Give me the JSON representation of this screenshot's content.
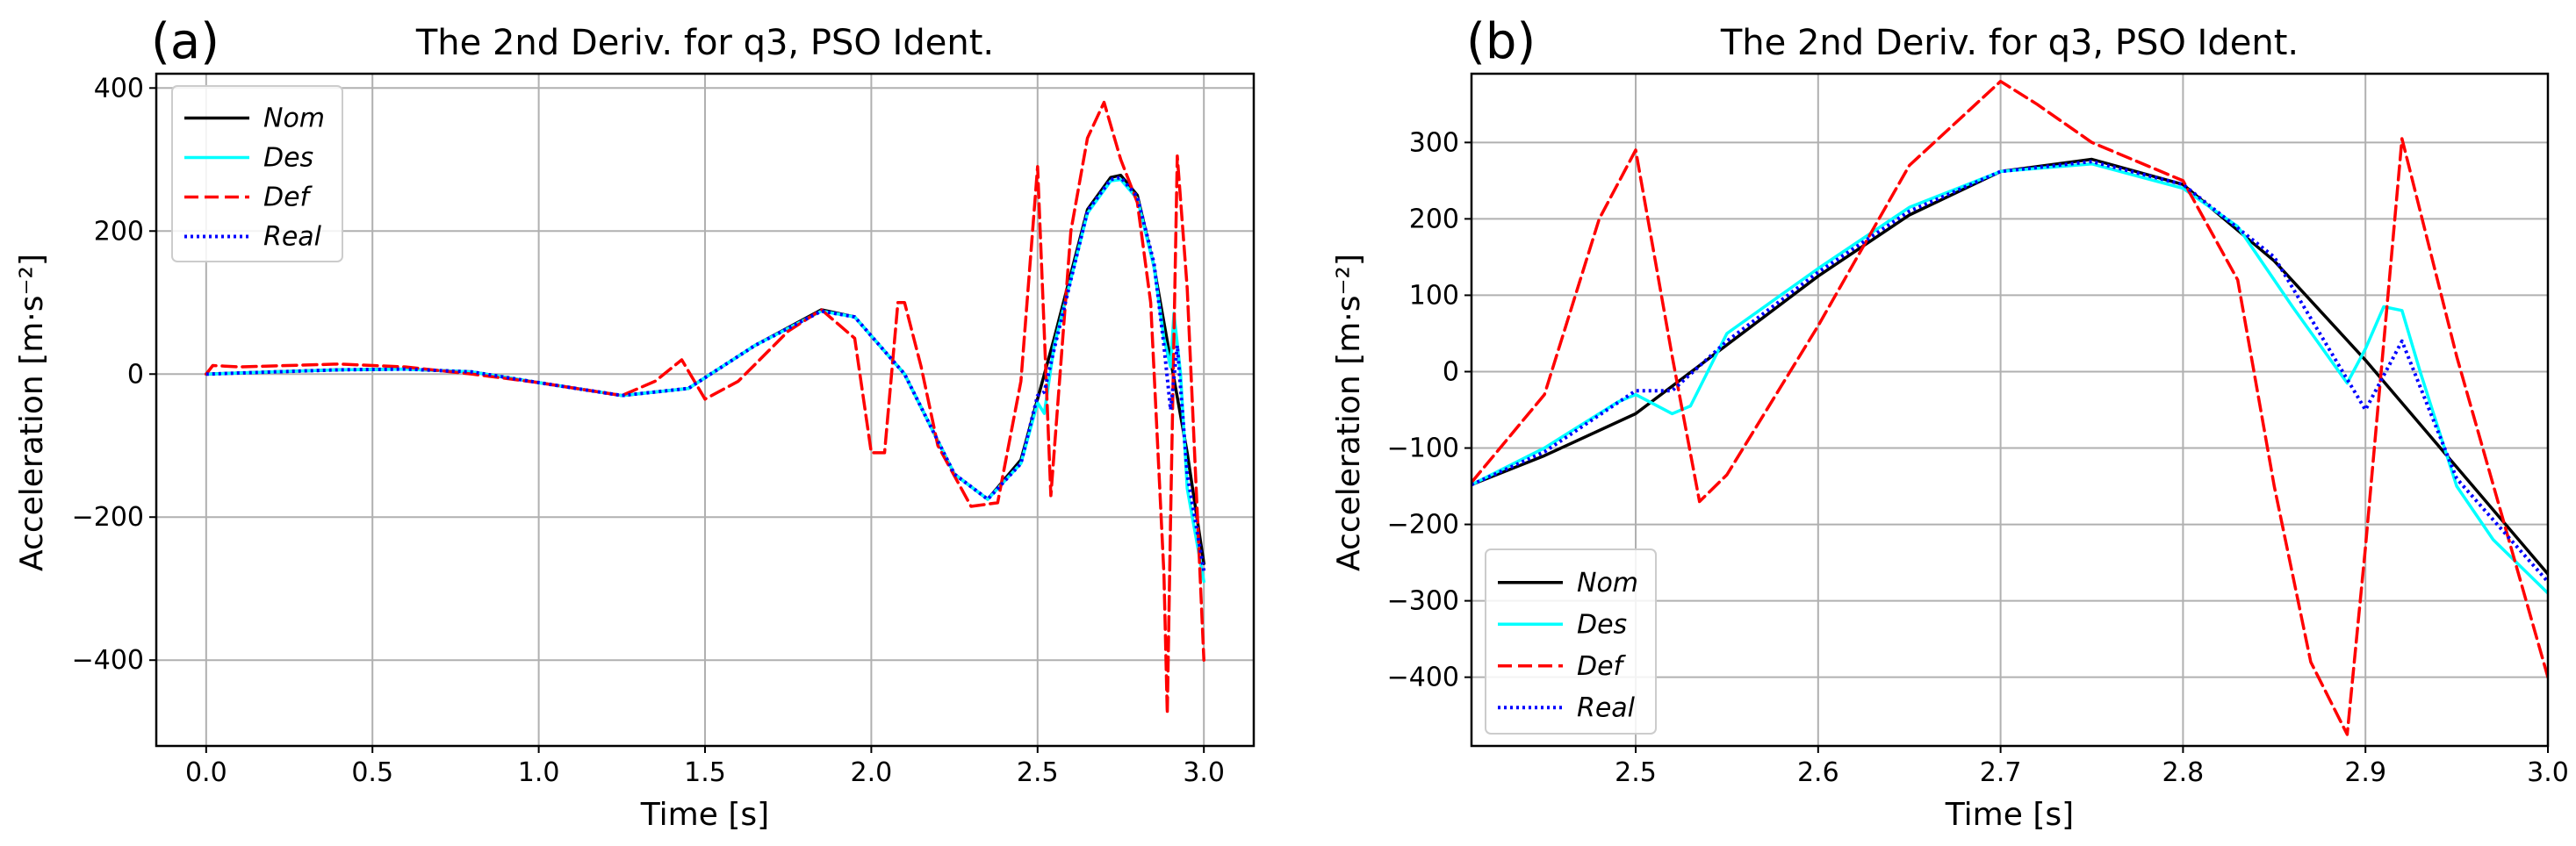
{
  "chart_data": [
    {
      "type": "line",
      "panel_label": "(a)",
      "title": "The 2nd Deriv. for q3, PSO Ident.",
      "xlabel": "Time [s]",
      "ylabel": "Acceleration [m·s⁻²]",
      "xlim": [
        -0.15,
        3.15
      ],
      "ylim": [
        -520,
        420
      ],
      "xticks": [
        0.0,
        0.5,
        1.0,
        1.5,
        2.0,
        2.5,
        3.0
      ],
      "xtick_labels": [
        "0.0",
        "0.5",
        "1.0",
        "1.5",
        "2.0",
        "2.5",
        "3.0"
      ],
      "yticks": [
        -400,
        -200,
        0,
        200,
        400
      ],
      "ytick_labels": [
        "−400",
        "−200",
        "0",
        "200",
        "400"
      ],
      "grid": true,
      "legend_position": "top-left",
      "series": [
        {
          "name": "Nom",
          "color": "#000000",
          "style": "solid",
          "x": [
            0.0,
            0.2,
            0.4,
            0.6,
            0.8,
            1.0,
            1.25,
            1.45,
            1.65,
            1.85,
            1.95,
            2.1,
            2.25,
            2.35,
            2.45,
            2.55,
            2.65,
            2.72,
            2.75,
            2.8,
            2.85,
            2.9,
            2.95,
            3.0
          ],
          "values": [
            0,
            3,
            6,
            7,
            3,
            -12,
            -30,
            -20,
            40,
            90,
            80,
            0,
            -140,
            -175,
            -120,
            50,
            230,
            275,
            278,
            250,
            150,
            20,
            -110,
            -265
          ]
        },
        {
          "name": "Des",
          "color": "#00ffff",
          "style": "solid",
          "x": [
            0.0,
            0.2,
            0.4,
            0.6,
            0.8,
            1.0,
            1.25,
            1.45,
            1.65,
            1.85,
            1.95,
            2.1,
            2.25,
            2.35,
            2.45,
            2.5,
            2.52,
            2.55,
            2.65,
            2.72,
            2.75,
            2.8,
            2.85,
            2.88,
            2.9,
            2.91,
            2.93,
            2.95,
            3.0
          ],
          "values": [
            0,
            3,
            6,
            7,
            3,
            -12,
            -30,
            -20,
            40,
            88,
            80,
            0,
            -140,
            -175,
            -125,
            -40,
            -55,
            40,
            225,
            270,
            272,
            245,
            150,
            50,
            10,
            85,
            0,
            -160,
            -290
          ]
        },
        {
          "name": "Def",
          "color": "#ff0000",
          "style": "dashed",
          "x": [
            0.0,
            0.02,
            0.1,
            0.4,
            0.6,
            0.8,
            1.0,
            1.25,
            1.35,
            1.43,
            1.5,
            1.6,
            1.75,
            1.85,
            1.95,
            2.0,
            2.04,
            2.08,
            2.1,
            2.15,
            2.2,
            2.3,
            2.38,
            2.45,
            2.5,
            2.54,
            2.6,
            2.65,
            2.7,
            2.75,
            2.8,
            2.84,
            2.88,
            2.89,
            2.9,
            2.92,
            2.95,
            3.0
          ],
          "values": [
            0,
            12,
            10,
            14,
            10,
            0,
            -12,
            -30,
            -10,
            20,
            -35,
            -10,
            60,
            90,
            50,
            -110,
            -110,
            100,
            100,
            10,
            -100,
            -185,
            -180,
            -10,
            290,
            -170,
            200,
            330,
            380,
            300,
            240,
            100,
            -280,
            -475,
            -200,
            305,
            120,
            -400
          ]
        },
        {
          "name": "Real",
          "color": "#0000ff",
          "style": "dotted",
          "x": [
            0.0,
            0.2,
            0.4,
            0.6,
            0.8,
            1.0,
            1.25,
            1.45,
            1.65,
            1.85,
            1.95,
            2.1,
            2.25,
            2.35,
            2.45,
            2.5,
            2.52,
            2.55,
            2.65,
            2.72,
            2.75,
            2.8,
            2.85,
            2.88,
            2.9,
            2.92,
            2.95,
            3.0
          ],
          "values": [
            0,
            3,
            6,
            7,
            3,
            -12,
            -30,
            -20,
            40,
            88,
            80,
            0,
            -140,
            -175,
            -125,
            -30,
            -25,
            35,
            228,
            272,
            275,
            248,
            155,
            40,
            -50,
            40,
            -140,
            -275
          ]
        }
      ]
    },
    {
      "type": "line",
      "panel_label": "(b)",
      "title": "The 2nd Deriv. for q3, PSO Ident.",
      "xlabel": "Time [s]",
      "ylabel": "Acceleration [m·s⁻²]",
      "xlim": [
        2.41,
        3.0
      ],
      "ylim": [
        -490,
        390
      ],
      "xticks": [
        2.5,
        2.6,
        2.7,
        2.8,
        2.9,
        3.0
      ],
      "xtick_labels": [
        "2.5",
        "2.6",
        "2.7",
        "2.8",
        "2.9",
        "3.0"
      ],
      "yticks": [
        -400,
        -300,
        -200,
        -100,
        0,
        100,
        200,
        300
      ],
      "ytick_labels": [
        "−400",
        "−300",
        "−200",
        "−100",
        "0",
        "100",
        "200",
        "300"
      ],
      "grid": true,
      "legend_position": "bottom-left",
      "series": [
        {
          "name": "Nom",
          "color": "#000000",
          "style": "solid",
          "x": [
            2.41,
            2.45,
            2.5,
            2.55,
            2.6,
            2.65,
            2.7,
            2.75,
            2.8,
            2.85,
            2.9,
            2.95,
            3.0
          ],
          "values": [
            -148,
            -110,
            -55,
            35,
            125,
            205,
            262,
            278,
            245,
            145,
            15,
            -125,
            -265
          ]
        },
        {
          "name": "Des",
          "color": "#00ffff",
          "style": "solid",
          "x": [
            2.41,
            2.45,
            2.49,
            2.5,
            2.52,
            2.53,
            2.55,
            2.6,
            2.65,
            2.7,
            2.75,
            2.8,
            2.83,
            2.86,
            2.89,
            2.9,
            2.91,
            2.92,
            2.93,
            2.95,
            2.97,
            3.0
          ],
          "values": [
            -148,
            -100,
            -40,
            -30,
            -55,
            -45,
            50,
            135,
            215,
            262,
            272,
            240,
            190,
            85,
            -15,
            30,
            85,
            80,
            0,
            -150,
            -220,
            -290
          ]
        },
        {
          "name": "Def",
          "color": "#ff0000",
          "style": "dashed",
          "x": [
            2.41,
            2.45,
            2.48,
            2.5,
            2.52,
            2.535,
            2.55,
            2.6,
            2.65,
            2.7,
            2.72,
            2.75,
            2.8,
            2.83,
            2.85,
            2.87,
            2.89,
            2.9,
            2.92,
            2.95,
            3.0
          ],
          "values": [
            -145,
            -30,
            200,
            290,
            20,
            -170,
            -135,
            60,
            270,
            380,
            350,
            300,
            250,
            120,
            -150,
            -380,
            -475,
            -230,
            305,
            20,
            -400
          ]
        },
        {
          "name": "Real",
          "color": "#0000ff",
          "style": "dotted",
          "x": [
            2.41,
            2.45,
            2.5,
            2.52,
            2.55,
            2.6,
            2.65,
            2.7,
            2.75,
            2.8,
            2.85,
            2.88,
            2.9,
            2.92,
            2.95,
            3.0
          ],
          "values": [
            -148,
            -105,
            -25,
            -25,
            40,
            130,
            210,
            262,
            275,
            245,
            150,
            30,
            -50,
            40,
            -140,
            -275
          ]
        }
      ]
    }
  ]
}
